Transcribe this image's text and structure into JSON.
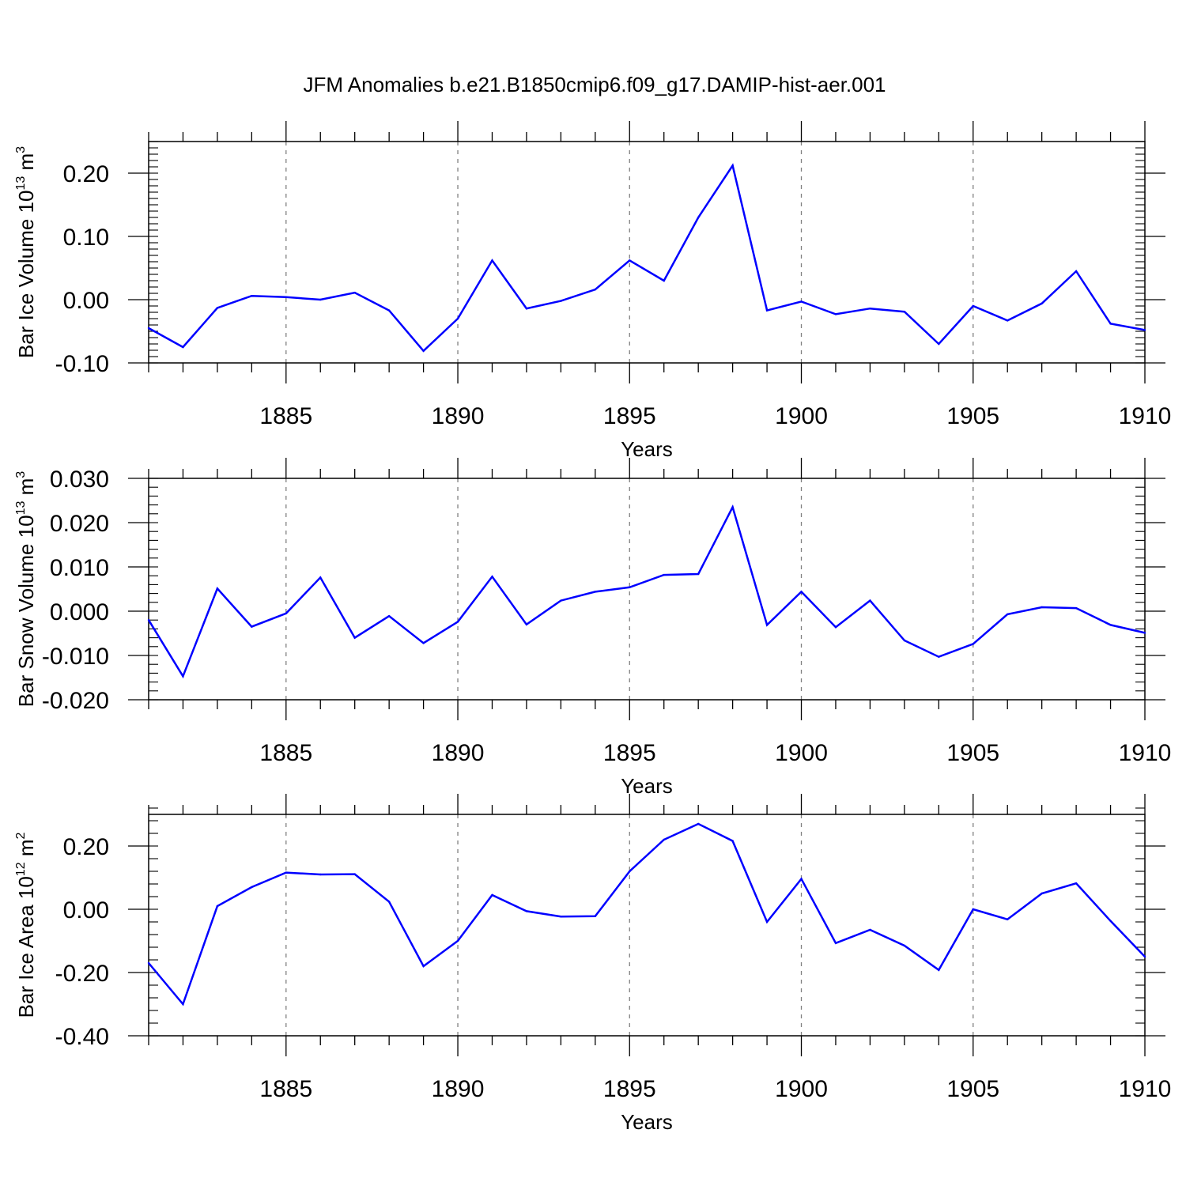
{
  "title": "JFM Anomalies b.e21.B1850cmip6.f09_g17.DAMIP-hist-aer.001",
  "colors": {
    "line": "#0000ff",
    "axis": "#000000",
    "grid": "#808080"
  },
  "chart_data": [
    {
      "type": "line",
      "ylabel_text": "Bar Ice Volume 10",
      "ylabel_exp": "13",
      "ylabel_unit": " m",
      "ylabel_unit_exp": "3",
      "xlabel": "Years",
      "xlim": [
        1881,
        1910
      ],
      "ylim": [
        -0.1,
        0.25
      ],
      "yticks": [
        -0.1,
        0.0,
        0.1,
        0.2
      ],
      "ytick_labels": [
        "-0.10",
        "0.00",
        "0.10",
        "0.20"
      ],
      "xticks": [
        1885,
        1890,
        1895,
        1900,
        1905,
        1910
      ],
      "xtick_labels": [
        "1885",
        "1890",
        "1895",
        "1900",
        "1905",
        "1910"
      ],
      "grid": "vertical dashed at major x ticks",
      "x": [
        1881,
        1882,
        1883,
        1884,
        1885,
        1886,
        1887,
        1888,
        1889,
        1890,
        1891,
        1892,
        1893,
        1894,
        1895,
        1896,
        1897,
        1898,
        1899,
        1900,
        1901,
        1902,
        1903,
        1904,
        1905,
        1906,
        1907,
        1908,
        1909,
        1910
      ],
      "values": [
        -0.045,
        -0.075,
        -0.013,
        0.006,
        0.004,
        0.0,
        0.011,
        -0.017,
        -0.081,
        -0.03,
        0.062,
        -0.014,
        -0.002,
        0.016,
        0.062,
        0.03,
        0.13,
        0.212,
        -0.017,
        -0.003,
        -0.023,
        -0.014,
        -0.019,
        -0.07,
        -0.01,
        -0.033,
        -0.006,
        0.045,
        -0.038,
        -0.048
      ]
    },
    {
      "type": "line",
      "ylabel_text": "Bar Snow Volume 10",
      "ylabel_exp": "13",
      "ylabel_unit": " m",
      "ylabel_unit_exp": "3",
      "xlabel": "Years",
      "xlim": [
        1881,
        1910
      ],
      "ylim": [
        -0.02,
        0.03
      ],
      "yticks": [
        -0.02,
        -0.01,
        0.0,
        0.01,
        0.02,
        0.03
      ],
      "ytick_labels": [
        "-0.020",
        "-0.010",
        "0.000",
        "0.010",
        "0.020",
        "0.030"
      ],
      "xticks": [
        1885,
        1890,
        1895,
        1900,
        1905,
        1910
      ],
      "xtick_labels": [
        "1885",
        "1890",
        "1895",
        "1900",
        "1905",
        "1910"
      ],
      "grid": "vertical dashed at major x ticks",
      "x": [
        1881,
        1882,
        1883,
        1884,
        1885,
        1886,
        1887,
        1888,
        1889,
        1890,
        1891,
        1892,
        1893,
        1894,
        1895,
        1896,
        1897,
        1898,
        1899,
        1900,
        1901,
        1902,
        1903,
        1904,
        1905,
        1906,
        1907,
        1908,
        1909,
        1910
      ],
      "values": [
        -0.002,
        -0.0147,
        0.0051,
        -0.0035,
        -0.0005,
        0.0076,
        -0.006,
        -0.0011,
        -0.0072,
        -0.0024,
        0.0078,
        -0.003,
        0.0024,
        0.0044,
        0.0054,
        0.0082,
        0.0084,
        0.0235,
        -0.0031,
        0.0044,
        -0.0036,
        0.0024,
        -0.0066,
        -0.0103,
        -0.0074,
        -0.0007,
        0.0009,
        0.0007,
        -0.0031,
        -0.0049
      ]
    },
    {
      "type": "line",
      "ylabel_text": "Bar Ice Area 10",
      "ylabel_exp": "12",
      "ylabel_unit": " m",
      "ylabel_unit_exp": "2",
      "xlabel": "Years",
      "xlim": [
        1881,
        1910
      ],
      "ylim": [
        -0.4,
        0.3
      ],
      "yticks": [
        -0.4,
        -0.2,
        0.0,
        0.2
      ],
      "ytick_labels": [
        "-0.40",
        "-0.20",
        "0.00",
        "0.20"
      ],
      "xticks": [
        1885,
        1890,
        1895,
        1900,
        1905,
        1910
      ],
      "xtick_labels": [
        "1885",
        "1890",
        "1895",
        "1900",
        "1905",
        "1910"
      ],
      "grid": "vertical dashed at major x ticks",
      "x": [
        1881,
        1882,
        1883,
        1884,
        1885,
        1886,
        1887,
        1888,
        1889,
        1890,
        1891,
        1892,
        1893,
        1894,
        1895,
        1896,
        1897,
        1898,
        1899,
        1900,
        1901,
        1902,
        1903,
        1904,
        1905,
        1906,
        1907,
        1908,
        1909,
        1910
      ],
      "values": [
        -0.17,
        -0.3,
        0.01,
        0.07,
        0.116,
        0.11,
        0.111,
        0.024,
        -0.18,
        -0.1,
        0.045,
        -0.006,
        -0.023,
        -0.022,
        0.12,
        0.22,
        0.27,
        0.216,
        -0.04,
        0.096,
        -0.107,
        -0.065,
        -0.115,
        -0.192,
        0.0,
        -0.032,
        0.05,
        0.082,
        -0.037,
        -0.15
      ]
    }
  ]
}
